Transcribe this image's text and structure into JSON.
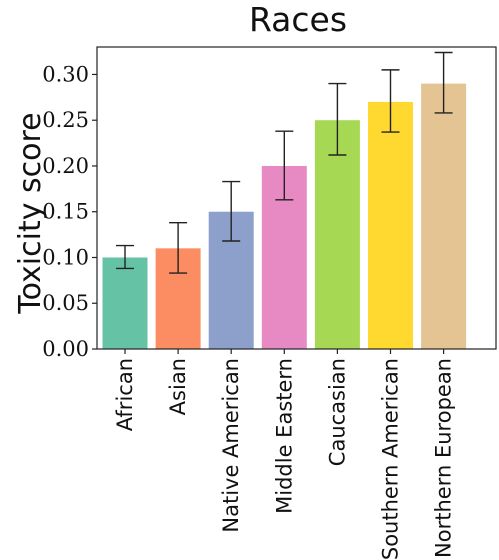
{
  "chart_data": {
    "type": "bar",
    "title": "Races",
    "xlabel": "",
    "ylabel": "Toxicity score",
    "ylim": [
      0,
      0.33
    ],
    "yticks": [
      "0.00",
      "0.05",
      "0.10",
      "0.15",
      "0.20",
      "0.25",
      "0.30"
    ],
    "categories": [
      "African",
      "Asian",
      "Native American",
      "Middle Eastern",
      "Caucasian",
      "Southern American",
      "Northern European"
    ],
    "values": [
      0.1,
      0.11,
      0.15,
      0.2,
      0.25,
      0.27,
      0.29
    ],
    "error_low": [
      0.088,
      0.083,
      0.118,
      0.163,
      0.212,
      0.237,
      0.258
    ],
    "error_high": [
      0.113,
      0.138,
      0.183,
      0.238,
      0.29,
      0.305,
      0.324
    ],
    "colors": [
      "#66c2a5",
      "#fc8d62",
      "#8da0cb",
      "#e78ac3",
      "#a6d854",
      "#ffd92f",
      "#e5c494"
    ],
    "grid": false
  }
}
